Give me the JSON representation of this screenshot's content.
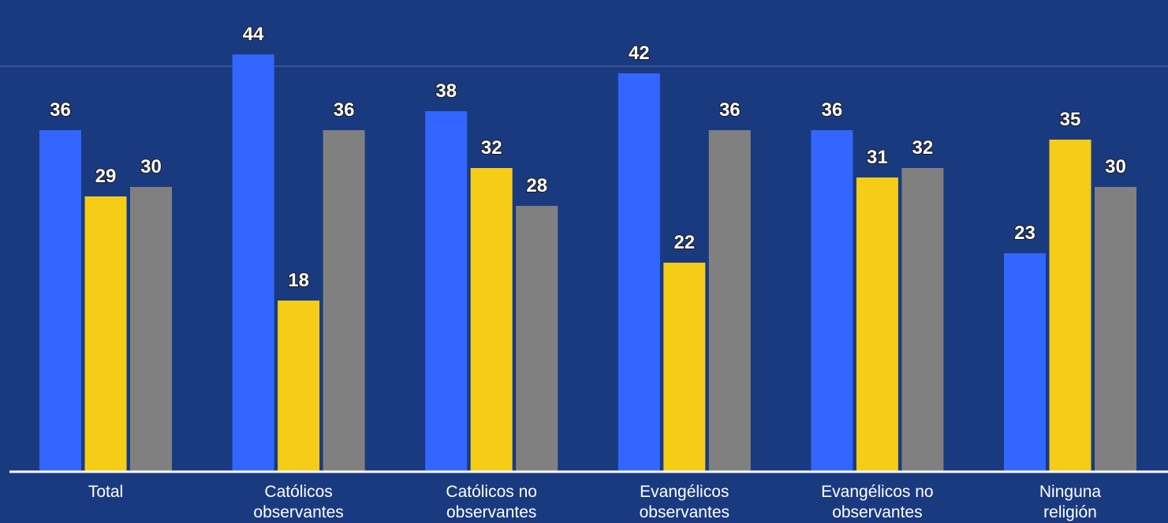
{
  "chart_data": {
    "type": "bar",
    "categories": [
      [
        "Total"
      ],
      [
        "Católicos",
        "observantes"
      ],
      [
        "Católicos no",
        "observantes"
      ],
      [
        "Evangélicos",
        "observantes"
      ],
      [
        "Evangélicos no",
        "observantes"
      ],
      [
        "Ninguna",
        "religión"
      ]
    ],
    "series": [
      {
        "color": "#3366ff",
        "values": [
          36,
          44,
          38,
          42,
          36,
          23
        ]
      },
      {
        "color": "#f5cc16",
        "values": [
          29,
          18,
          32,
          22,
          31,
          35
        ]
      },
      {
        "color": "#808080",
        "values": [
          30,
          36,
          28,
          36,
          32,
          30
        ]
      }
    ],
    "ylim": [
      0,
      47
    ],
    "grid": true,
    "legend": "none",
    "background": "#1a3a80",
    "axis_color": "#ffffff"
  }
}
